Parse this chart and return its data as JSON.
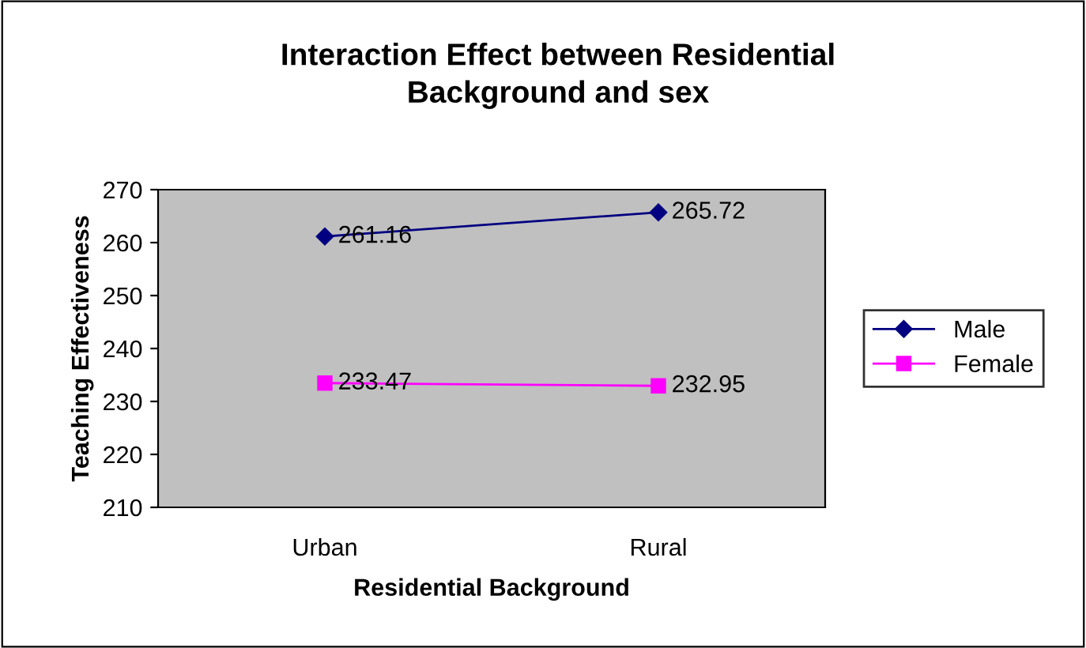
{
  "chart_data": {
    "type": "line",
    "title": "Interaction Effect between Residential\nBackground and sex",
    "xlabel": "Residential Background",
    "ylabel": "Teaching Effectiveness",
    "categories": [
      "Urban",
      "Rural"
    ],
    "series": [
      {
        "name": "Male",
        "color": "#000080",
        "marker": "diamond",
        "values": [
          261.16,
          265.72
        ]
      },
      {
        "name": "Female",
        "color": "#ff00ff",
        "marker": "square",
        "values": [
          233.47,
          232.95
        ]
      }
    ],
    "ylim": [
      210,
      270
    ],
    "yticks": [
      210,
      220,
      230,
      240,
      250,
      260,
      270
    ],
    "grid": false,
    "legend": "right",
    "data_labels": true,
    "line_style": "solid"
  }
}
